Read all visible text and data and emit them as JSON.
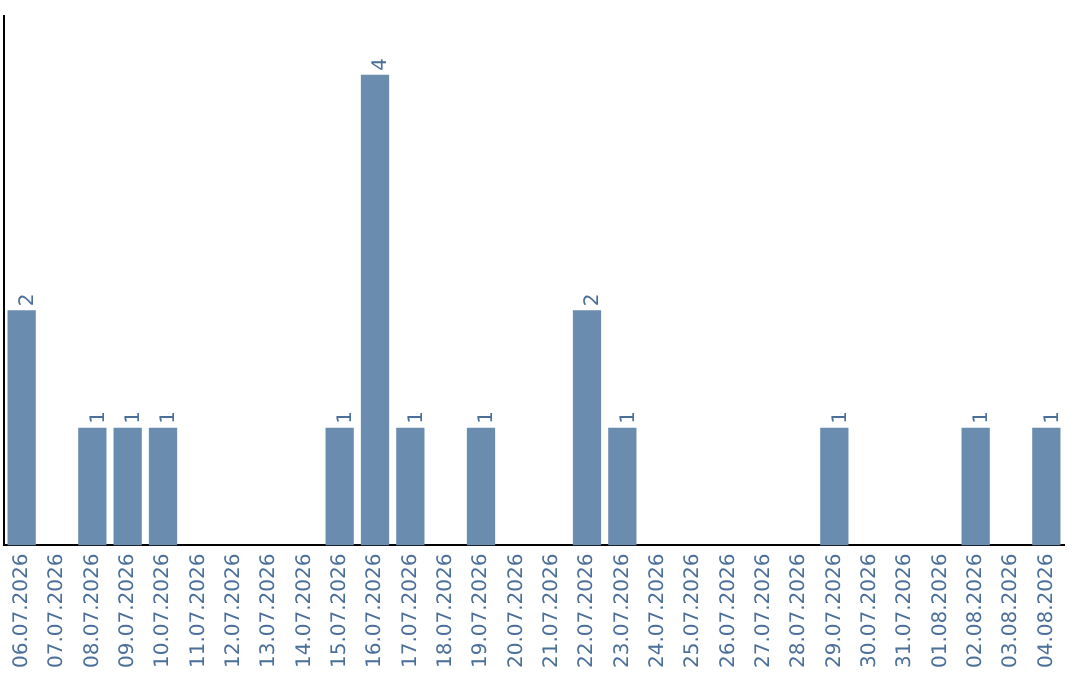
{
  "chart_data": {
    "type": "bar",
    "categories": [
      "06.07.2026",
      "07.07.2026",
      "08.07.2026",
      "09.07.2026",
      "10.07.2026",
      "11.07.2026",
      "12.07.2026",
      "13.07.2026",
      "14.07.2026",
      "15.07.2026",
      "16.07.2026",
      "17.07.2026",
      "18.07.2026",
      "19.07.2026",
      "20.07.2026",
      "21.07.2026",
      "22.07.2026",
      "23.07.2026",
      "24.07.2026",
      "25.07.2026",
      "26.07.2026",
      "27.07.2026",
      "28.07.2026",
      "29.07.2026",
      "30.07.2026",
      "31.07.2026",
      "01.08.2026",
      "02.08.2026",
      "03.08.2026",
      "04.08.2026"
    ],
    "values": [
      2,
      0,
      1,
      1,
      1,
      0,
      0,
      0,
      0,
      1,
      4,
      1,
      0,
      1,
      0,
      0,
      2,
      1,
      0,
      0,
      0,
      0,
      0,
      1,
      0,
      0,
      0,
      1,
      0,
      1
    ],
    "value_labels": [
      "2",
      null,
      "1",
      "1",
      "1",
      null,
      null,
      null,
      null,
      "1",
      "4",
      "1",
      null,
      "1",
      null,
      null,
      "2",
      "1",
      null,
      null,
      null,
      null,
      null,
      "1",
      null,
      null,
      null,
      "1",
      null,
      "1"
    ],
    "color": "#6a8caf",
    "grid": false,
    "tick_labels": "x"
  }
}
